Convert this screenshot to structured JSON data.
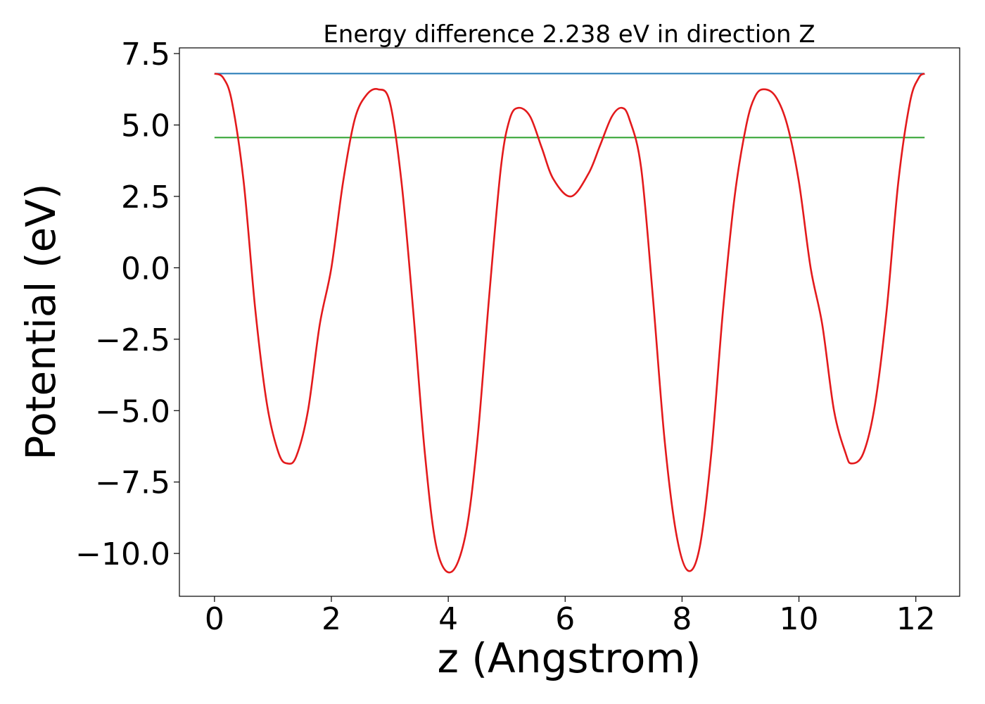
{
  "chart_data": {
    "type": "line",
    "title": "Energy difference 2.238 eV in direction Z",
    "xlabel": "z (Angstrom)",
    "ylabel": "Potential (eV)",
    "xlim": [
      -0.6,
      12.75
    ],
    "ylim": [
      -11.5,
      7.7
    ],
    "xticks": [
      0,
      2,
      4,
      6,
      8,
      10,
      12
    ],
    "xtick_labels": [
      "0",
      "2",
      "4",
      "6",
      "8",
      "10",
      "12"
    ],
    "yticks": [
      7.5,
      5.0,
      2.5,
      0.0,
      -2.5,
      -5.0,
      -7.5,
      -10.0
    ],
    "ytick_labels": [
      "7.5",
      "5.0",
      "2.5",
      "0.0",
      "−2.5",
      "−5.0",
      "−7.5",
      "−10.0"
    ],
    "grid": false,
    "colors": {
      "potential": "#e31a1c",
      "vacuum": "#1f77b4",
      "fermi": "#2ca02c"
    },
    "series": [
      {
        "key": "potential",
        "x": [
          0,
          0.15,
          0.3,
          0.5,
          0.7,
          0.9,
          1.1,
          1.25,
          1.4,
          1.6,
          1.8,
          2.0,
          2.2,
          2.4,
          2.6,
          2.8,
          3.0,
          3.2,
          3.4,
          3.6,
          3.8,
          4.05,
          4.3,
          4.5,
          4.7,
          4.9,
          5.05,
          5.2,
          5.4,
          5.6,
          5.8,
          6.1,
          6.4,
          6.6,
          6.8,
          6.97,
          7.1,
          7.3,
          7.5,
          7.7,
          7.9,
          8.1,
          8.3,
          8.5,
          8.7,
          8.9,
          9.1,
          9.25,
          9.4,
          9.6,
          9.8,
          10.0,
          10.2,
          10.4,
          10.6,
          10.8,
          10.9,
          11.1,
          11.3,
          11.5,
          11.7,
          11.9,
          12.05,
          12.15
        ],
        "y": [
          6.8,
          6.65,
          5.8,
          3.0,
          -1.5,
          -4.8,
          -6.5,
          -6.85,
          -6.6,
          -5.0,
          -2.0,
          0.0,
          3.0,
          5.2,
          6.05,
          6.25,
          5.8,
          3.0,
          -1.5,
          -6.5,
          -9.8,
          -10.65,
          -9.3,
          -6.0,
          -1.0,
          3.5,
          5.2,
          5.6,
          5.3,
          4.2,
          3.1,
          2.5,
          3.3,
          4.3,
          5.3,
          5.6,
          5.2,
          3.5,
          -1.0,
          -6.0,
          -9.3,
          -10.6,
          -9.8,
          -6.5,
          -1.5,
          2.5,
          5.0,
          6.0,
          6.25,
          6.0,
          5.0,
          3.0,
          0.0,
          -2.0,
          -5.0,
          -6.5,
          -6.85,
          -6.5,
          -4.8,
          -1.5,
          3.0,
          5.8,
          6.65,
          6.8
        ]
      },
      {
        "key": "vacuum",
        "x": [
          0,
          12.15
        ],
        "y": [
          6.8,
          6.8
        ]
      },
      {
        "key": "fermi",
        "x": [
          0,
          12.15
        ],
        "y": [
          4.56,
          4.56
        ]
      }
    ]
  }
}
